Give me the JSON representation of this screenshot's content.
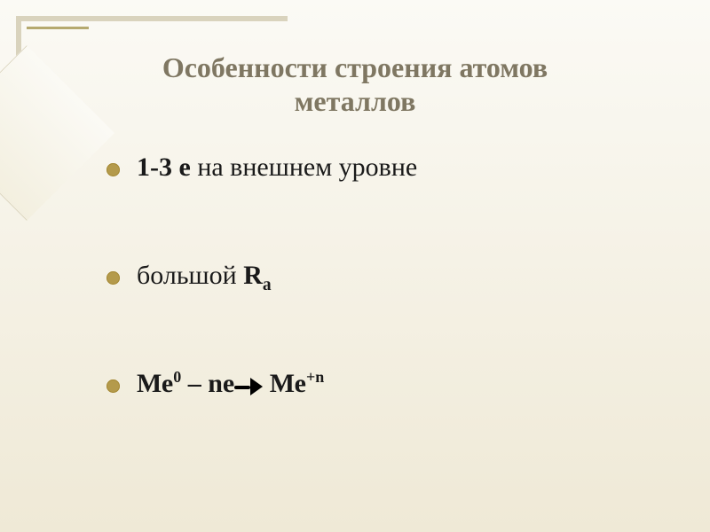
{
  "title": "Особенности строения атомов металлов",
  "bullets": {
    "item1": {
      "bold": "1-3 е",
      "rest": " на внешнем уровне"
    },
    "item2": {
      "text": "большой    ",
      "sym": "R",
      "sub": "а"
    },
    "item3": {
      "p1": "Ме",
      "sup1": "0",
      "mid": "  – nе",
      "p2": "   Ме",
      "sup2": "+n"
    }
  },
  "style": {
    "bg_top": "#fbfaf5",
    "bg_bottom": "#efe9d6",
    "frame_color": "#d9d3bd",
    "accent_color": "#b5a96f",
    "title_color": "#7f7762",
    "text_color": "#1a1a1a",
    "bullet_color": "#b49a4b",
    "title_fontsize": 32,
    "body_fontsize": 30,
    "formula_fontsize": 48,
    "font_family": "Times New Roman"
  }
}
